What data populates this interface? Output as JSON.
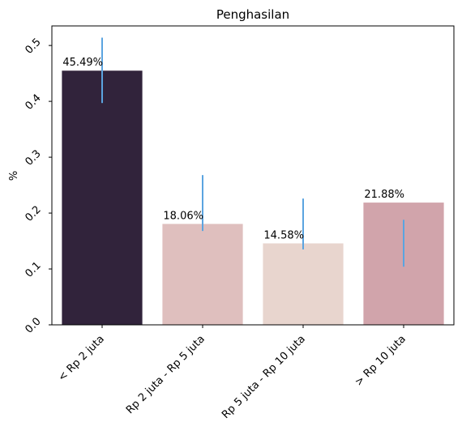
{
  "chart_data": {
    "type": "bar",
    "title": "Penghasilan",
    "xlabel": "",
    "ylabel": "%",
    "categories": [
      "< Rp 2 juta",
      "Rp 2 juta - Rp 5 juta",
      "Rp 5 juta - Rp 10 juta",
      "> Rp 10 juta"
    ],
    "values": [
      0.4549,
      0.1806,
      0.1458,
      0.2188
    ],
    "value_labels": [
      "45.49%",
      "18.06%",
      "14.58%",
      "21.88%"
    ],
    "error_bars": [
      [
        0.397,
        0.514
      ],
      [
        0.168,
        0.268
      ],
      [
        0.135,
        0.226
      ],
      [
        0.104,
        0.188
      ]
    ],
    "ylim": [
      0,
      0.535
    ],
    "yticks": [
      0.0,
      0.1,
      0.2,
      0.3,
      0.4,
      0.5
    ],
    "ytick_labels": [
      "0.0",
      "0.1",
      "0.2",
      "0.3",
      "0.4",
      "0.5"
    ],
    "grid": false,
    "colors": [
      "#31233b",
      "#dfbfbe",
      "#e8d5ce",
      "#d1a4ab"
    ],
    "error_color": "#5ba4e0"
  }
}
